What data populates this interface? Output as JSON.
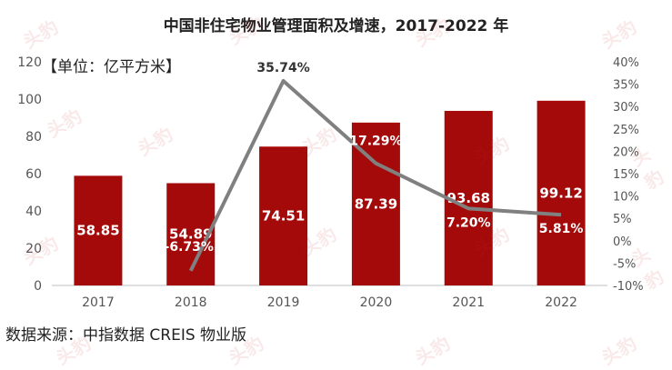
{
  "title": "中国非住宅物业管理面积及增速，2017-2022 年",
  "unit_label": "【单位：亿平方米】",
  "source": "数据来源：中指数据 CREIS 物业版",
  "watermark": "头豹",
  "colors": {
    "bar": "#a50a0a",
    "line": "#808080",
    "bar_label": "#ffffff",
    "line_label": "#333333",
    "axis_text": "#555555"
  },
  "chart_data": {
    "type": "bar+line",
    "categories": [
      "2017",
      "2018",
      "2019",
      "2020",
      "2021",
      "2022"
    ],
    "series": [
      {
        "values": [
          58.85,
          54.89,
          74.51,
          87.39,
          93.68,
          99.12
        ],
        "kind": "bar",
        "axis": "left"
      },
      {
        "values": [
          null,
          -6.73,
          35.74,
          17.29,
          7.2,
          5.81
        ],
        "kind": "line",
        "axis": "right",
        "labels": [
          "",
          "-6.73%",
          "35.74%",
          "17.29%",
          "7.20%",
          "5.81%"
        ]
      }
    ],
    "bar_labels": [
      "58.85",
      "54.89",
      "74.51",
      "87.39",
      "93.68",
      "99.12"
    ],
    "ylim_left": [
      0,
      120
    ],
    "yticks_left": [
      0,
      20,
      40,
      60,
      80,
      100,
      120
    ],
    "ylim_right": [
      -10,
      40
    ],
    "yticks_right": [
      "-10%",
      "-5%",
      "0%",
      "5%",
      "10%",
      "15%",
      "20%",
      "25%",
      "30%",
      "35%",
      "40%"
    ],
    "grid": false,
    "legend": "none"
  }
}
